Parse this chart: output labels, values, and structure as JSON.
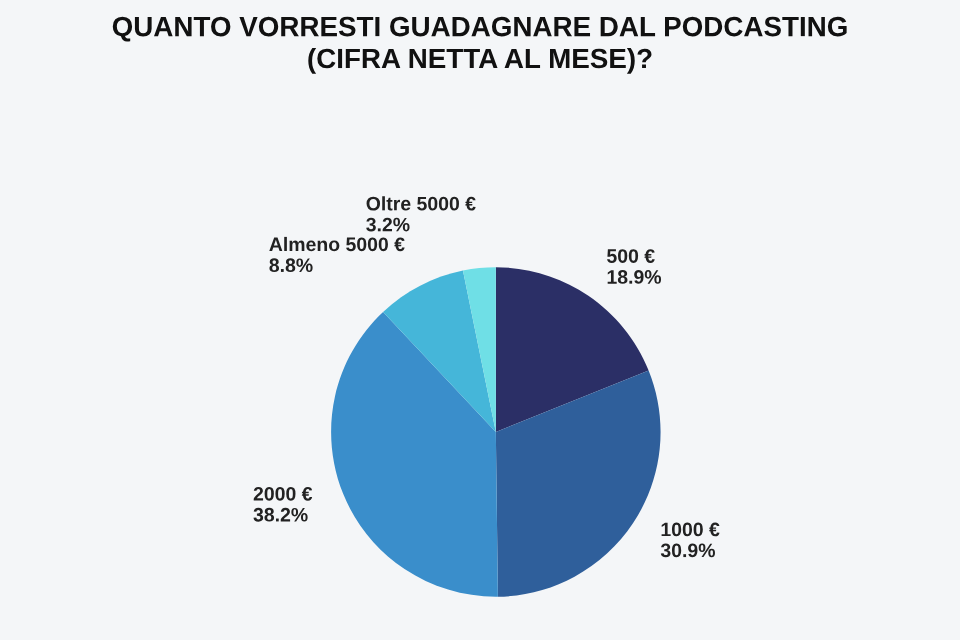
{
  "chart_data": {
    "type": "pie",
    "title": "QUANTO VORRESTI GUADAGNARE DAL PODCASTING\n(CIFRA NETTA AL MESE)?",
    "categories": [
      "500 €",
      "1000 €",
      "2000 €",
      "Almeno 5000 €",
      "Oltre 5000 €"
    ],
    "values": [
      18.9,
      30.9,
      38.2,
      8.8,
      3.2
    ],
    "colors": [
      "#2b2f66",
      "#2f5f9b",
      "#3a8ecb",
      "#45b6d9",
      "#6fdfe6"
    ],
    "value_labels": [
      "18.9%",
      "30.9%",
      "38.2%",
      "8.8%",
      "3.2%"
    ],
    "legend": false
  }
}
